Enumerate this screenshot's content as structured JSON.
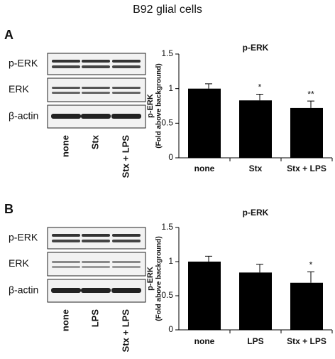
{
  "title": "B92 glial cells",
  "panels": [
    {
      "letter": "A",
      "blot_rows": [
        "p-ERK",
        "ERK",
        "β-actin"
      ],
      "lanes": [
        "none",
        "Stx",
        "Stx + LPS"
      ]
    },
    {
      "letter": "B",
      "blot_rows": [
        "p-ERK",
        "ERK",
        "β-actin"
      ],
      "lanes": [
        "none",
        "LPS",
        "Stx + LPS"
      ]
    }
  ],
  "chart_data": [
    {
      "type": "bar",
      "title": "p-ERK",
      "y_label": [
        "p-ERK",
        "(Fold above background)"
      ],
      "categories": [
        "none",
        "Stx",
        "Stx + LPS"
      ],
      "series": [
        {
          "color": "#000000",
          "values": [
            1.0,
            0.83,
            0.72
          ],
          "errors": [
            0.07,
            0.09,
            0.1
          ],
          "annotations": [
            null,
            "*",
            "**"
          ]
        }
      ],
      "ylim": [
        0,
        1.5
      ],
      "yticks": [
        0,
        0.5,
        1,
        1.5
      ]
    },
    {
      "type": "bar",
      "title": "p-ERK",
      "y_label": [
        "p-ERK",
        "(Fold above background)"
      ],
      "categories": [
        "none",
        "LPS",
        "Stx + LPS"
      ],
      "series": [
        {
          "color": "#000000",
          "values": [
            1.0,
            0.84,
            0.69
          ],
          "errors": [
            0.08,
            0.12,
            0.16
          ],
          "annotations": [
            null,
            null,
            "*"
          ]
        }
      ],
      "ylim": [
        0,
        1.5
      ],
      "yticks": [
        0,
        0.5,
        1,
        1.5
      ]
    }
  ]
}
